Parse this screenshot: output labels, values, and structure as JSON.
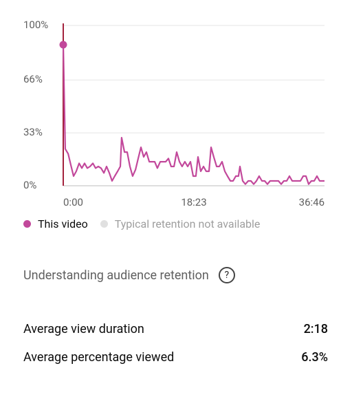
{
  "chart_data": {
    "type": "line",
    "x": [
      0,
      17,
      41,
      64,
      87,
      110,
      134,
      157,
      180,
      203,
      226,
      250,
      273,
      296,
      319,
      343,
      366,
      389,
      412,
      435,
      459,
      482,
      493,
      517,
      540,
      563,
      586,
      610,
      633,
      656,
      679,
      702,
      726,
      749,
      772,
      795,
      819,
      842,
      865,
      888,
      911,
      935,
      958,
      981,
      1004,
      1027,
      1051,
      1074,
      1097,
      1120,
      1138,
      1161,
      1184,
      1207,
      1231,
      1248,
      1271,
      1295,
      1318,
      1341,
      1364,
      1387,
      1411,
      1434,
      1457,
      1480,
      1492,
      1515,
      1538,
      1562,
      1585,
      1608,
      1631,
      1654,
      1678,
      1701,
      1724,
      1747,
      1771,
      1794,
      1817,
      1840,
      1863,
      1887,
      1910,
      1933,
      1956,
      1979,
      2003,
      2026,
      2049,
      2072,
      2095,
      2119,
      2142,
      2165,
      2188,
      2206
    ],
    "series": [
      {
        "name": "This video",
        "color": "#c2489b",
        "values": [
          88,
          23,
          20,
          13,
          6,
          9,
          14,
          11,
          14,
          11,
          12,
          14,
          11,
          12,
          11,
          8,
          12,
          8,
          3,
          6,
          9,
          12,
          30,
          21,
          21,
          12,
          6,
          10,
          17,
          24,
          18,
          21,
          15,
          15,
          15,
          11,
          15,
          15,
          15,
          17,
          12,
          12,
          21,
          15,
          12,
          15,
          12,
          15,
          6,
          6,
          18,
          9,
          12,
          9,
          9,
          24,
          18,
          12,
          12,
          15,
          9,
          6,
          3,
          3,
          6,
          6,
          12,
          3,
          1,
          3,
          3,
          1,
          3,
          6,
          3,
          3,
          1,
          3,
          3,
          3,
          3,
          1,
          3,
          3,
          6,
          3,
          3,
          3,
          3,
          6,
          6,
          1,
          3,
          3,
          6,
          3,
          3,
          3
        ]
      }
    ],
    "xlim": [
      0,
      2206
    ],
    "xticks": [
      {
        "value": 0,
        "label": "0:00"
      },
      {
        "value": 1103,
        "label": "18:23"
      },
      {
        "value": 2206,
        "label": "36:46"
      }
    ],
    "ylim": [
      0,
      100
    ],
    "yticks": [
      {
        "value": 0,
        "label": "0%"
      },
      {
        "value": 33,
        "label": "33%"
      },
      {
        "value": 66,
        "label": "66%"
      },
      {
        "value": 100,
        "label": "100%"
      }
    ],
    "grid": true
  },
  "legend_extra": {
    "label": "Typical retention not available",
    "color": "#e0e0e0"
  },
  "section": {
    "title": "Understanding audience retention",
    "icon": "?"
  },
  "stats": [
    {
      "label": "Average view duration",
      "value": "2:18"
    },
    {
      "label": "Average percentage viewed",
      "value": "6.3%"
    }
  ]
}
